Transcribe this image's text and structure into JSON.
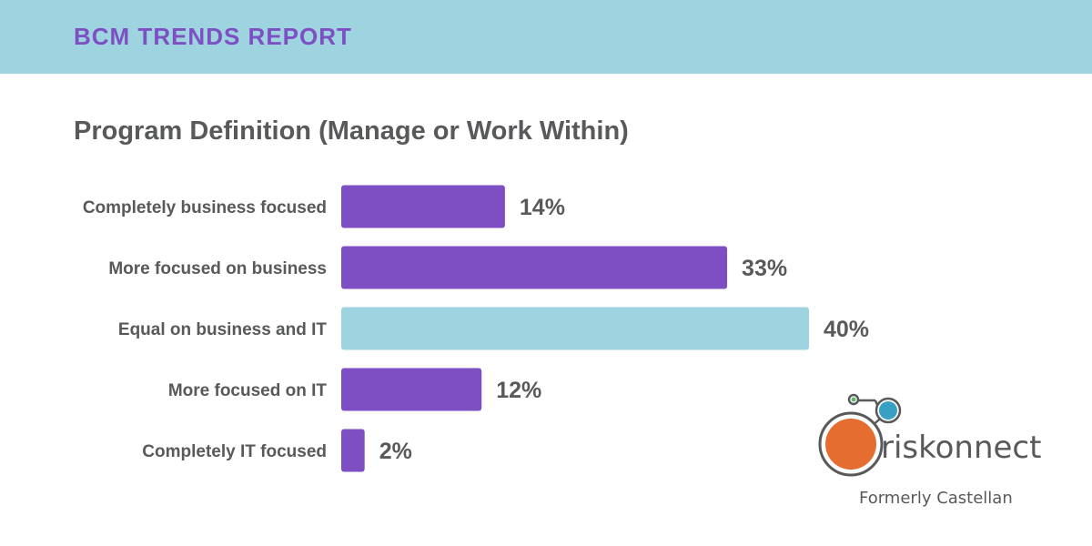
{
  "header": {
    "title": "BCM TRENDS REPORT"
  },
  "colors": {
    "banner": "#9dd4df",
    "accent": "#7e4fc2",
    "bar": "#7e4fc2",
    "highlight_bar": "#9dd4df",
    "text": "#58595b"
  },
  "chart_data": {
    "type": "bar",
    "orientation": "horizontal",
    "title": "Program Definition (Manage or Work Within)",
    "categories": [
      "Completely business focused",
      "More focused on business",
      "Equal on business and IT",
      "More focused on IT",
      "Completely IT focused"
    ],
    "values": [
      14,
      33,
      40,
      12,
      2
    ],
    "value_labels": [
      "14%",
      "33%",
      "40%",
      "12%",
      "2%"
    ],
    "highlight_index": 2,
    "xlim": [
      0,
      40
    ],
    "grid": false
  },
  "brand": {
    "name": "riskonnect",
    "tagline": "Formerly Castellan"
  }
}
